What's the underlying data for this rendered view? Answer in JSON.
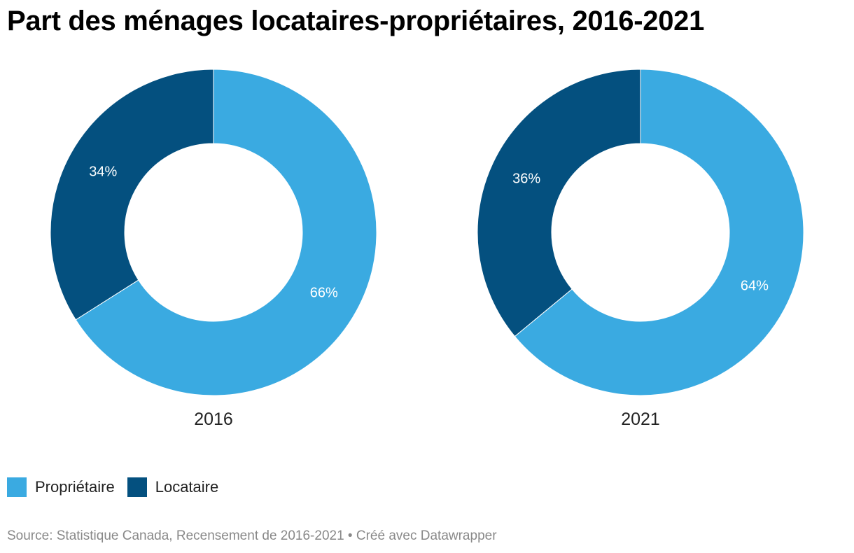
{
  "title": "Part des ménages locataires-propriétaires, 2016-2021",
  "footer": {
    "source": "Source: Statistique Canada, Recensement de 2016-2021",
    "separator": " • ",
    "credit": "Créé avec Datawrapper"
  },
  "chart_data": [
    {
      "type": "pie",
      "style": "donut",
      "label": "2016",
      "categories": [
        "Propriétaire",
        "Locataire"
      ],
      "values": [
        66,
        34
      ],
      "value_labels": [
        "66%",
        "34%"
      ],
      "colors": [
        "#3aaae1",
        "#04507f"
      ],
      "start": "12 o'clock, clockwise"
    },
    {
      "type": "pie",
      "style": "donut",
      "label": "2021",
      "categories": [
        "Propriétaire",
        "Locataire"
      ],
      "values": [
        64,
        36
      ],
      "value_labels": [
        "64%",
        "36%"
      ],
      "colors": [
        "#3aaae1",
        "#04507f"
      ],
      "start": "12 o'clock, clockwise"
    }
  ],
  "legend": {
    "placement": "bottom-left",
    "items": [
      {
        "label": "Propriétaire",
        "color": "#3aaae1"
      },
      {
        "label": "Locataire",
        "color": "#04507f"
      }
    ]
  }
}
